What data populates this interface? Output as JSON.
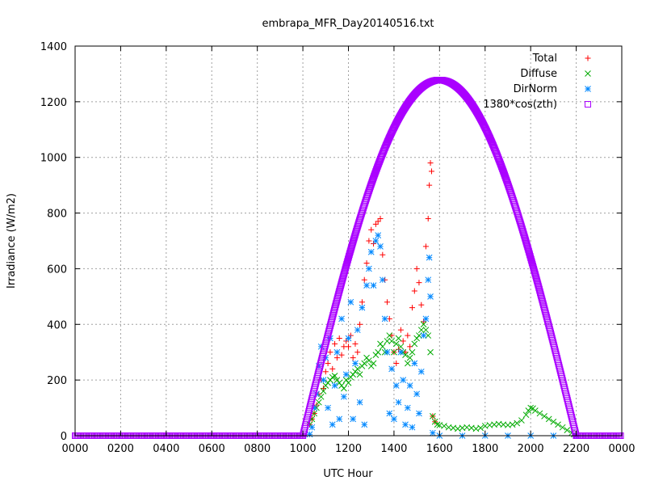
{
  "chart_data": {
    "type": "scatter",
    "title": "embrapa_MFR_Day20140516.txt",
    "xlabel": "UTC Hour",
    "ylabel": "Irradiance (W/m2)",
    "xlim": [
      0,
      24
    ],
    "ylim": [
      0,
      1400
    ],
    "x_ticks": [
      {
        "value": 0,
        "label": "0000"
      },
      {
        "value": 2,
        "label": "0200"
      },
      {
        "value": 4,
        "label": "0400"
      },
      {
        "value": 6,
        "label": "0600"
      },
      {
        "value": 8,
        "label": "0800"
      },
      {
        "value": 10,
        "label": "1000"
      },
      {
        "value": 12,
        "label": "1200"
      },
      {
        "value": 14,
        "label": "1400"
      },
      {
        "value": 16,
        "label": "1600"
      },
      {
        "value": 18,
        "label": "1800"
      },
      {
        "value": 20,
        "label": "2000"
      },
      {
        "value": 22,
        "label": "2200"
      },
      {
        "value": 24,
        "label": "0000"
      }
    ],
    "y_ticks": [
      0,
      200,
      400,
      600,
      800,
      1000,
      1200,
      1400
    ],
    "grid": true,
    "legend_position": "top-right",
    "series": [
      {
        "name": "Total",
        "color": "#ff0000",
        "marker": "plus",
        "points": [
          [
            10.3,
            40
          ],
          [
            10.4,
            60
          ],
          [
            10.5,
            80
          ],
          [
            10.6,
            110
          ],
          [
            10.7,
            150
          ],
          [
            10.8,
            200
          ],
          [
            10.9,
            170
          ],
          [
            11.0,
            230
          ],
          [
            11.1,
            260
          ],
          [
            11.2,
            300
          ],
          [
            11.3,
            240
          ],
          [
            11.4,
            330
          ],
          [
            11.5,
            280
          ],
          [
            11.6,
            350
          ],
          [
            11.7,
            290
          ],
          [
            11.8,
            320
          ],
          [
            11.9,
            340
          ],
          [
            12.0,
            320
          ],
          [
            12.1,
            360
          ],
          [
            12.2,
            280
          ],
          [
            12.3,
            330
          ],
          [
            12.4,
            300
          ],
          [
            12.5,
            400
          ],
          [
            12.6,
            480
          ],
          [
            12.7,
            560
          ],
          [
            12.8,
            620
          ],
          [
            12.9,
            700
          ],
          [
            13.0,
            740
          ],
          [
            13.1,
            690
          ],
          [
            13.2,
            760
          ],
          [
            13.3,
            770
          ],
          [
            13.4,
            780
          ],
          [
            13.5,
            650
          ],
          [
            13.6,
            560
          ],
          [
            13.7,
            480
          ],
          [
            13.8,
            420
          ],
          [
            13.9,
            360
          ],
          [
            14.0,
            300
          ],
          [
            14.1,
            260
          ],
          [
            14.2,
            310
          ],
          [
            14.3,
            380
          ],
          [
            14.4,
            340
          ],
          [
            14.5,
            300
          ],
          [
            14.6,
            360
          ],
          [
            14.7,
            320
          ],
          [
            14.8,
            460
          ],
          [
            14.9,
            520
          ],
          [
            15.0,
            600
          ],
          [
            15.1,
            550
          ],
          [
            15.2,
            470
          ],
          [
            15.3,
            410
          ],
          [
            15.4,
            680
          ],
          [
            15.5,
            780
          ],
          [
            15.55,
            900
          ],
          [
            15.6,
            980
          ],
          [
            15.65,
            950
          ],
          [
            15.7,
            70
          ],
          [
            15.8,
            50
          ]
        ]
      },
      {
        "name": "Diffuse",
        "color": "#00aa00",
        "marker": "cross",
        "points": [
          [
            10.3,
            40
          ],
          [
            10.4,
            60
          ],
          [
            10.5,
            80
          ],
          [
            10.6,
            100
          ],
          [
            10.7,
            120
          ],
          [
            10.8,
            140
          ],
          [
            10.9,
            160
          ],
          [
            11.0,
            180
          ],
          [
            11.1,
            190
          ],
          [
            11.2,
            200
          ],
          [
            11.3,
            210
          ],
          [
            11.4,
            215
          ],
          [
            11.5,
            200
          ],
          [
            11.6,
            190
          ],
          [
            11.7,
            180
          ],
          [
            11.8,
            170
          ],
          [
            11.9,
            200
          ],
          [
            12.0,
            190
          ],
          [
            12.1,
            210
          ],
          [
            12.2,
            220
          ],
          [
            12.3,
            230
          ],
          [
            12.4,
            240
          ],
          [
            12.5,
            220
          ],
          [
            12.6,
            250
          ],
          [
            12.7,
            260
          ],
          [
            12.8,
            280
          ],
          [
            12.9,
            270
          ],
          [
            13.0,
            250
          ],
          [
            13.1,
            260
          ],
          [
            13.2,
            290
          ],
          [
            13.3,
            300
          ],
          [
            13.4,
            330
          ],
          [
            13.5,
            320
          ],
          [
            13.6,
            300
          ],
          [
            13.7,
            340
          ],
          [
            13.8,
            360
          ],
          [
            13.9,
            340
          ],
          [
            14.0,
            300
          ],
          [
            14.1,
            330
          ],
          [
            14.2,
            350
          ],
          [
            14.3,
            320
          ],
          [
            14.4,
            300
          ],
          [
            14.5,
            290
          ],
          [
            14.6,
            260
          ],
          [
            14.7,
            280
          ],
          [
            14.8,
            300
          ],
          [
            14.9,
            330
          ],
          [
            15.0,
            350
          ],
          [
            15.1,
            360
          ],
          [
            15.2,
            380
          ],
          [
            15.3,
            400
          ],
          [
            15.4,
            380
          ],
          [
            15.5,
            360
          ],
          [
            15.6,
            300
          ],
          [
            15.7,
            70
          ],
          [
            15.8,
            50
          ],
          [
            15.9,
            40
          ],
          [
            16.0,
            38
          ],
          [
            16.2,
            35
          ],
          [
            16.4,
            30
          ],
          [
            16.6,
            28
          ],
          [
            16.8,
            25
          ],
          [
            17.0,
            28
          ],
          [
            17.2,
            30
          ],
          [
            17.4,
            28
          ],
          [
            17.6,
            25
          ],
          [
            17.8,
            28
          ],
          [
            18.0,
            35
          ],
          [
            18.2,
            38
          ],
          [
            18.4,
            40
          ],
          [
            18.6,
            42
          ],
          [
            18.8,
            40
          ],
          [
            19.0,
            38
          ],
          [
            19.2,
            40
          ],
          [
            19.4,
            45
          ],
          [
            19.6,
            55
          ],
          [
            19.8,
            75
          ],
          [
            19.9,
            90
          ],
          [
            20.0,
            100
          ],
          [
            20.1,
            98
          ],
          [
            20.2,
            90
          ],
          [
            20.4,
            80
          ],
          [
            20.6,
            70
          ],
          [
            20.8,
            60
          ],
          [
            21.0,
            50
          ],
          [
            21.2,
            40
          ],
          [
            21.4,
            30
          ],
          [
            21.6,
            20
          ],
          [
            21.8,
            10
          ],
          [
            21.9,
            5
          ]
        ]
      },
      {
        "name": "DirNorm",
        "color": "#0088ff",
        "marker": "star",
        "points": [
          [
            10.3,
            5
          ],
          [
            10.4,
            30
          ],
          [
            10.5,
            100
          ],
          [
            10.6,
            150
          ],
          [
            10.7,
            250
          ],
          [
            10.8,
            320
          ],
          [
            10.9,
            200
          ],
          [
            11.0,
            280
          ],
          [
            11.1,
            100
          ],
          [
            11.2,
            350
          ],
          [
            11.3,
            40
          ],
          [
            11.4,
            180
          ],
          [
            11.5,
            300
          ],
          [
            11.6,
            60
          ],
          [
            11.7,
            420
          ],
          [
            11.8,
            140
          ],
          [
            11.9,
            220
          ],
          [
            12.0,
            350
          ],
          [
            12.1,
            480
          ],
          [
            12.2,
            60
          ],
          [
            12.3,
            260
          ],
          [
            12.4,
            380
          ],
          [
            12.5,
            120
          ],
          [
            12.6,
            460
          ],
          [
            12.7,
            40
          ],
          [
            12.8,
            540
          ],
          [
            12.9,
            600
          ],
          [
            13.0,
            660
          ],
          [
            13.1,
            540
          ],
          [
            13.2,
            700
          ],
          [
            13.3,
            720
          ],
          [
            13.4,
            680
          ],
          [
            13.5,
            560
          ],
          [
            13.6,
            420
          ],
          [
            13.7,
            300
          ],
          [
            13.8,
            80
          ],
          [
            13.9,
            240
          ],
          [
            14.0,
            60
          ],
          [
            14.1,
            180
          ],
          [
            14.2,
            120
          ],
          [
            14.3,
            300
          ],
          [
            14.4,
            200
          ],
          [
            14.5,
            40
          ],
          [
            14.6,
            100
          ],
          [
            14.7,
            180
          ],
          [
            14.8,
            30
          ],
          [
            14.9,
            260
          ],
          [
            15.0,
            150
          ],
          [
            15.1,
            80
          ],
          [
            15.2,
            230
          ],
          [
            15.3,
            360
          ],
          [
            15.4,
            420
          ],
          [
            15.5,
            560
          ],
          [
            15.55,
            640
          ],
          [
            15.6,
            500
          ],
          [
            15.7,
            10
          ],
          [
            16.0,
            0
          ],
          [
            17.0,
            0
          ],
          [
            18.0,
            0
          ],
          [
            19.0,
            0
          ],
          [
            20.0,
            0
          ],
          [
            21.0,
            0
          ],
          [
            22.0,
            0
          ]
        ]
      },
      {
        "name": "1380*cos(zth)",
        "color": "#aa00ff",
        "marker": "box",
        "description_formula": "1380*cos(zth)",
        "curve": {
          "rise": 10.0,
          "peak_x": 16.0,
          "peak_y": 1278,
          "set": 22.0
        }
      }
    ]
  }
}
